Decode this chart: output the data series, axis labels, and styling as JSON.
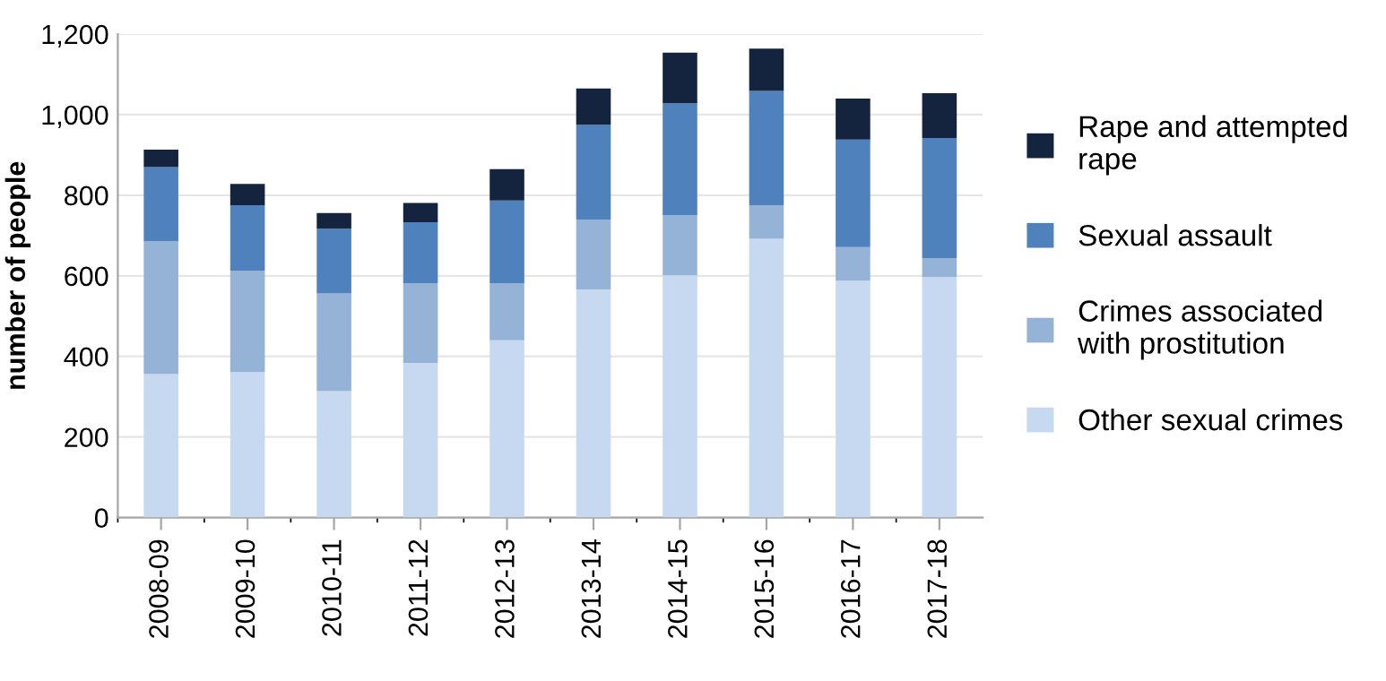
{
  "chart_data": {
    "type": "bar",
    "stacked": true,
    "ylabel": "number of people",
    "categories": [
      "2008-09",
      "2009-10",
      "2010-11",
      "2011-12",
      "2012-13",
      "2013-14",
      "2014-15",
      "2015-16",
      "2016-17",
      "2017-18"
    ],
    "series": [
      {
        "name": "Other sexual crimes",
        "color": "#c6d9f0",
        "values": [
          356,
          361,
          314,
          384,
          440,
          566,
          601,
          692,
          588,
          597
        ]
      },
      {
        "name": "Crimes associated with prostitution",
        "color": "#95b3d7",
        "values": [
          330,
          252,
          242,
          198,
          142,
          173,
          149,
          83,
          83,
          47
        ]
      },
      {
        "name": "Sexual assault",
        "color": "#4f81bd",
        "values": [
          184,
          162,
          161,
          151,
          205,
          236,
          278,
          284,
          267,
          298
        ]
      },
      {
        "name": "Rape and attempted rape",
        "color": "#14243f",
        "values": [
          43,
          53,
          39,
          48,
          78,
          90,
          126,
          105,
          102,
          111
        ]
      }
    ],
    "ylim": [
      0,
      1200
    ],
    "yticks": [
      0,
      200,
      400,
      600,
      800,
      {
        "value": 1000,
        "label": "1,000"
      },
      {
        "value": 1200,
        "label": "1,200"
      }
    ],
    "grid": "y",
    "legend": "right"
  }
}
